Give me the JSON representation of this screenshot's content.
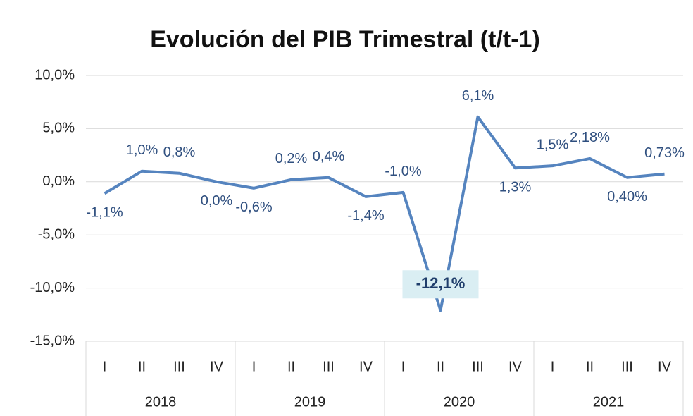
{
  "chart_data": {
    "type": "line",
    "title": "Evolución del PIB Trimestral (t/t-1)",
    "categories": [
      "I",
      "II",
      "III",
      "IV",
      "I",
      "II",
      "III",
      "IV",
      "I",
      "II",
      "III",
      "IV",
      "I",
      "II",
      "III",
      "IV"
    ],
    "year_groups": [
      "2018",
      "2019",
      "2020",
      "2021"
    ],
    "series": [
      {
        "name": "PIB t/t-1",
        "color": "#5584bf",
        "values": [
          -1.1,
          1.0,
          0.8,
          0.0,
          -0.6,
          0.2,
          0.4,
          -1.4,
          -1.0,
          -12.1,
          6.1,
          1.3,
          1.5,
          2.18,
          0.4,
          0.73
        ],
        "value_labels": [
          "-1,1%",
          "1,0%",
          "0,8%",
          "0,0%",
          "-0,6%",
          "0,2%",
          "0,4%",
          "-1,4%",
          "-1,0%",
          "-12,1%",
          "6,1%",
          "1,3%",
          "1,5%",
          "2,18%",
          "0,40%",
          "0,73%"
        ],
        "label_positions": [
          "below",
          "above",
          "above",
          "below",
          "below",
          "above",
          "above",
          "below",
          "above",
          "highlight",
          "above",
          "below",
          "above",
          "above",
          "below",
          "above"
        ]
      }
    ],
    "highlight_color": "#daeef3",
    "ylim": [
      -15,
      10
    ],
    "yticks": [
      {
        "value": -15,
        "label": "-15,0%"
      },
      {
        "value": -10,
        "label": "-10,0%"
      },
      {
        "value": -5,
        "label": "-5,0%"
      },
      {
        "value": 0,
        "label": "0,0%"
      },
      {
        "value": 5,
        "label": "5,0%"
      },
      {
        "value": 10,
        "label": "10,0%"
      }
    ],
    "grid": true
  }
}
